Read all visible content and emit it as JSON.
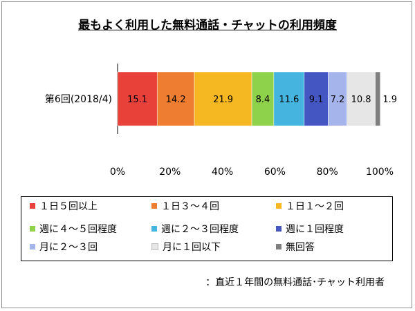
{
  "title": "最もよく利用した無料通話・チャットの利用頻度",
  "note": "：直近１年間の無料通話･チャット利用者",
  "chart_data": {
    "type": "bar",
    "orientation": "horizontal",
    "stacked": "percent",
    "categories": [
      "第6回(2018/4)"
    ],
    "series": [
      {
        "name": "１日５回以上",
        "values": [
          15.1
        ],
        "color": "#e8413a"
      },
      {
        "name": "１日３～４回",
        "values": [
          14.2
        ],
        "color": "#ef7d31"
      },
      {
        "name": "１日１～２回",
        "values": [
          21.9
        ],
        "color": "#f5b823"
      },
      {
        "name": "週に４～５回程度",
        "values": [
          8.4
        ],
        "color": "#8ed14b"
      },
      {
        "name": "週に２～３回程度",
        "values": [
          11.6
        ],
        "color": "#45b5e0"
      },
      {
        "name": "週に１回程度",
        "values": [
          9.1
        ],
        "color": "#4456c2"
      },
      {
        "name": "月に２～３回",
        "values": [
          7.2
        ],
        "color": "#a6b4ec"
      },
      {
        "name": "月に１回以下",
        "values": [
          10.8
        ],
        "color": "#e6e6e6"
      },
      {
        "name": "無回答",
        "values": [
          1.9
        ],
        "color": "#7f7f7f"
      }
    ],
    "x_ticks": [
      "0%",
      "20%",
      "40%",
      "60%",
      "80%",
      "100%"
    ],
    "xlim": [
      0,
      100
    ],
    "grid": false,
    "legend_position": "bottom"
  }
}
